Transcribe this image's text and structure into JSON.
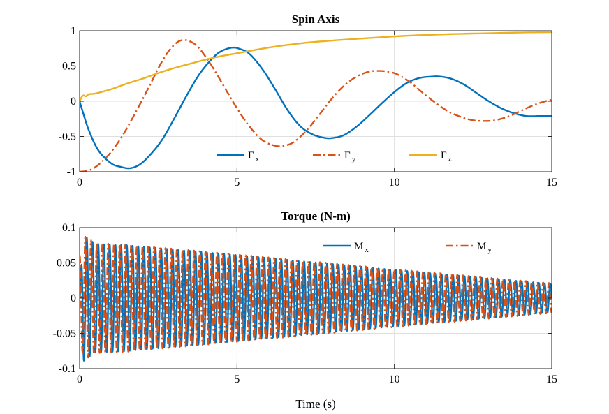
{
  "chart_data": [
    {
      "type": "line",
      "title": "Spin Axis",
      "xlabel": "",
      "ylabel": "",
      "xlim": [
        0,
        15
      ],
      "ylim": [
        -1,
        1
      ],
      "xticks": [
        "0",
        "5",
        "10",
        "15"
      ],
      "yticks": [
        "-1",
        "-0.5",
        "0",
        "0.5",
        "1"
      ],
      "grid": true,
      "legend": {
        "placement": "bottom-right",
        "orientation": "horizontal"
      },
      "series": [
        {
          "name": "Γx",
          "base": "Γ",
          "sub": "x",
          "color": "#0072BD",
          "dash": "solid",
          "x": [
            0,
            0.1,
            0.3,
            0.6,
            1.0,
            1.3,
            1.6,
            1.9,
            2.2,
            2.6,
            3.0,
            3.4,
            3.8,
            4.2,
            4.5,
            4.85,
            5.1,
            5.4,
            5.8,
            6.2,
            6.6,
            7.0,
            7.4,
            7.8,
            8.05,
            8.4,
            8.8,
            9.2,
            9.6,
            10.0,
            10.4,
            10.8,
            11.2,
            11.45,
            11.8,
            12.2,
            12.6,
            13.0,
            13.4,
            13.8,
            14.2,
            14.6,
            15.0
          ],
          "y": [
            0,
            -0.15,
            -0.42,
            -0.7,
            -0.88,
            -0.93,
            -0.95,
            -0.9,
            -0.78,
            -0.56,
            -0.25,
            0.08,
            0.38,
            0.6,
            0.71,
            0.76,
            0.74,
            0.67,
            0.46,
            0.18,
            -0.12,
            -0.35,
            -0.47,
            -0.52,
            -0.52,
            -0.48,
            -0.36,
            -0.2,
            -0.03,
            0.13,
            0.26,
            0.33,
            0.35,
            0.35,
            0.32,
            0.24,
            0.12,
            0.0,
            -0.1,
            -0.17,
            -0.21,
            -0.21,
            -0.21
          ]
        },
        {
          "name": "Γy",
          "base": "Γ",
          "sub": "y",
          "color": "#D95319",
          "dash": "dashdot",
          "x": [
            0,
            0.3,
            0.6,
            1.0,
            1.4,
            1.8,
            2.2,
            2.6,
            2.9,
            3.2,
            3.5,
            3.8,
            4.2,
            4.6,
            5.0,
            5.4,
            5.8,
            6.2,
            6.5,
            6.8,
            7.2,
            7.6,
            8.0,
            8.4,
            8.8,
            9.2,
            9.5,
            9.8,
            10.1,
            10.5,
            10.9,
            11.3,
            11.7,
            12.1,
            12.5,
            12.9,
            13.2,
            13.6,
            14.0,
            14.4,
            14.8,
            15.0
          ],
          "y": [
            -1.0,
            -0.98,
            -0.9,
            -0.72,
            -0.46,
            -0.14,
            0.2,
            0.55,
            0.75,
            0.86,
            0.85,
            0.75,
            0.5,
            0.2,
            -0.1,
            -0.36,
            -0.55,
            -0.63,
            -0.63,
            -0.58,
            -0.42,
            -0.2,
            0.03,
            0.22,
            0.35,
            0.42,
            0.43,
            0.42,
            0.38,
            0.27,
            0.12,
            -0.02,
            -0.14,
            -0.22,
            -0.27,
            -0.28,
            -0.27,
            -0.22,
            -0.14,
            -0.06,
            0.0,
            0.02
          ]
        },
        {
          "name": "Γz",
          "base": "Γ",
          "sub": "z",
          "color": "#EDB120",
          "dash": "solid",
          "x": [
            0,
            0.1,
            0.2,
            0.3,
            0.5,
            1.0,
            1.5,
            2.0,
            2.5,
            3.0,
            3.5,
            4.0,
            4.5,
            5.0,
            6.0,
            7.0,
            8.0,
            9.0,
            10.0,
            11.0,
            12.0,
            13.0,
            14.0,
            15.0
          ],
          "y": [
            0.0,
            0.08,
            0.07,
            0.1,
            0.11,
            0.17,
            0.25,
            0.32,
            0.4,
            0.47,
            0.53,
            0.59,
            0.64,
            0.68,
            0.76,
            0.82,
            0.86,
            0.89,
            0.92,
            0.94,
            0.955,
            0.965,
            0.975,
            0.98
          ]
        }
      ]
    },
    {
      "type": "line",
      "title": "Torque (N-m)",
      "xlabel": "Time (s)",
      "ylabel": "",
      "xlim": [
        0,
        15
      ],
      "ylim": [
        -0.1,
        0.1
      ],
      "xticks": [
        "0",
        "5",
        "10",
        "15"
      ],
      "yticks": [
        "-0.1",
        "-0.05",
        "0",
        "0.05",
        "0.1"
      ],
      "grid": true,
      "legend": {
        "placement": "top-right",
        "orientation": "horizontal"
      },
      "series": [
        {
          "name": "Mx",
          "base": "M",
          "sub": "x",
          "color": "#0072BD",
          "dash": "solid",
          "oscillation": {
            "frequency_hz": 5.5,
            "phase": 0,
            "envelope_t": [
              0,
              0.1,
              0.5,
              1.5,
              5.0,
              10.0,
              15.0
            ],
            "envelope_amp": [
              0.0,
              0.09,
              0.077,
              0.075,
              0.061,
              0.04,
              0.02
            ]
          }
        },
        {
          "name": "My",
          "base": "M",
          "sub": "y",
          "color": "#D95319",
          "dash": "dashdot",
          "oscillation": {
            "frequency_hz": 5.5,
            "phase": 1.5708,
            "envelope_t": [
              0,
              0.15,
              0.5,
              1.5,
              5.0,
              10.0,
              15.0
            ],
            "envelope_amp": [
              0.06,
              0.088,
              0.078,
              0.076,
              0.062,
              0.041,
              0.021
            ]
          }
        }
      ]
    }
  ]
}
